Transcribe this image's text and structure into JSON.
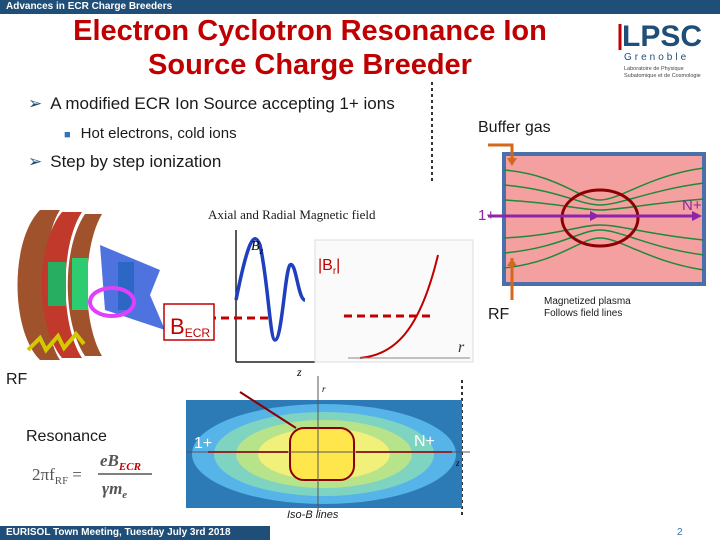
{
  "header": {
    "section": "Advances in ECR Charge Breeders"
  },
  "title": "Electron Cyclotron Resonance Ion Source Charge Breeder",
  "logo": {
    "name": "LPSC",
    "city": "Grenoble",
    "caption_line1": "Laboratoire de Physique",
    "caption_line2": "Subatomique et de Cosmologie"
  },
  "bullets": {
    "b1": "A modified ECR Ion Source accepting 1+ ions",
    "b1_sub": "Hot electrons, cold ions",
    "b2": "Step by step ionization"
  },
  "labels": {
    "buffer_gas": "Buffer gas",
    "axial_radial": "Axial and Radial Magnetic  field",
    "bz": "B",
    "bz_sub": "z",
    "br": "|B",
    "br_sub": "r",
    "br_close": "|",
    "becr": "B",
    "becr_sub": "ECR",
    "z_axis": "z",
    "r_axis": "r",
    "rf_left": "RF",
    "rf_right": "RF",
    "resonance": "Resonance",
    "one_plus_top": "1+",
    "n_plus_top": "N+",
    "one_plus_bottom": "1+",
    "n_plus_bottom": "N+",
    "magnetized_line1": "Magnetized plasma",
    "magnetized_line2": "Follows field lines",
    "iso_b": "Iso-B lines",
    "formula_lhs": "2πf",
    "formula_lhs_sub": "RF",
    "formula_eq": "=",
    "formula_num": "eB",
    "formula_num_sub": "ECR",
    "formula_den": "γm",
    "formula_den_sub": "e"
  },
  "footer": {
    "text": "EURISOL Town Meeting, Tuesday July 3rd 2018",
    "page": "2"
  },
  "colors": {
    "title": "#c00000",
    "bar": "#1f4e79",
    "accent": "#2e75b6",
    "field_line": "#1e8a3a",
    "chamber": "#f4a0a0"
  }
}
